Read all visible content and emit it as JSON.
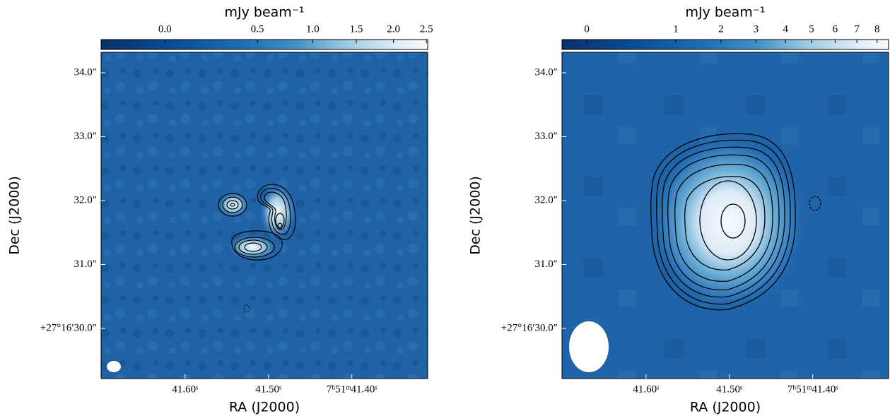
{
  "chart_data": [
    {
      "type": "image",
      "colorbar_label": "mJy beam⁻¹",
      "xlabel": "RA (J2000)",
      "ylabel": "Dec (J2000)",
      "colormap": "Blues",
      "color_stretch": "sqrt",
      "clim": [
        -0.1,
        2.52
      ],
      "cticks": [
        {
          "value": 0,
          "label": "0.0"
        },
        {
          "value": 0.5,
          "label": "0.5"
        },
        {
          "value": 1,
          "label": "1.0"
        },
        {
          "value": 1.5,
          "label": "1.5"
        },
        {
          "value": 2,
          "label": "2.0"
        },
        {
          "value": 2.5,
          "label": "2.5"
        }
      ],
      "xlim": [
        41.7008,
        41.309
      ],
      "xticks": [
        {
          "value": 41.6,
          "label": "41.60ˢ"
        },
        {
          "value": 41.5,
          "label": "41.50ˢ"
        },
        {
          "value": 41.4,
          "label": "7ʰ51ᵐ41.40ˢ"
        }
      ],
      "ylim": [
        29.215,
        34.32
      ],
      "yticks": [
        {
          "value": 34,
          "label": "34.0″"
        },
        {
          "value": 33,
          "label": "33.0″"
        },
        {
          "value": 32,
          "label": "32.0″"
        },
        {
          "value": 31,
          "label": "31.0″"
        },
        {
          "value": 30,
          "label": "+27°16′30.0″"
        }
      ]
    },
    {
      "type": "image",
      "colorbar_label": "mJy beam⁻¹",
      "xlabel": "RA (J2000)",
      "ylabel": "Dec (J2000)",
      "colormap": "Blues",
      "color_stretch": "sqrt",
      "clim": [
        -0.05,
        8.6
      ],
      "cticks": [
        0,
        1,
        2,
        3,
        4,
        5,
        6,
        7,
        8
      ],
      "xlim": [
        41.7008,
        41.309
      ],
      "xticks": [
        {
          "value": 41.6,
          "label": "41.60ˢ"
        },
        {
          "value": 41.5,
          "label": "41.50ˢ"
        },
        {
          "value": 41.4,
          "label": "7ʰ51ᵐ41.40ˢ"
        }
      ],
      "ylim": [
        29.215,
        34.32
      ],
      "yticks": [
        {
          "value": 34,
          "label": "34.0″"
        },
        {
          "value": 33,
          "label": "33.0″"
        },
        {
          "value": 32,
          "label": "32.0″"
        },
        {
          "value": 31,
          "label": "31.0″"
        },
        {
          "value": 30,
          "label": "+27°16′30.0″"
        }
      ]
    }
  ]
}
